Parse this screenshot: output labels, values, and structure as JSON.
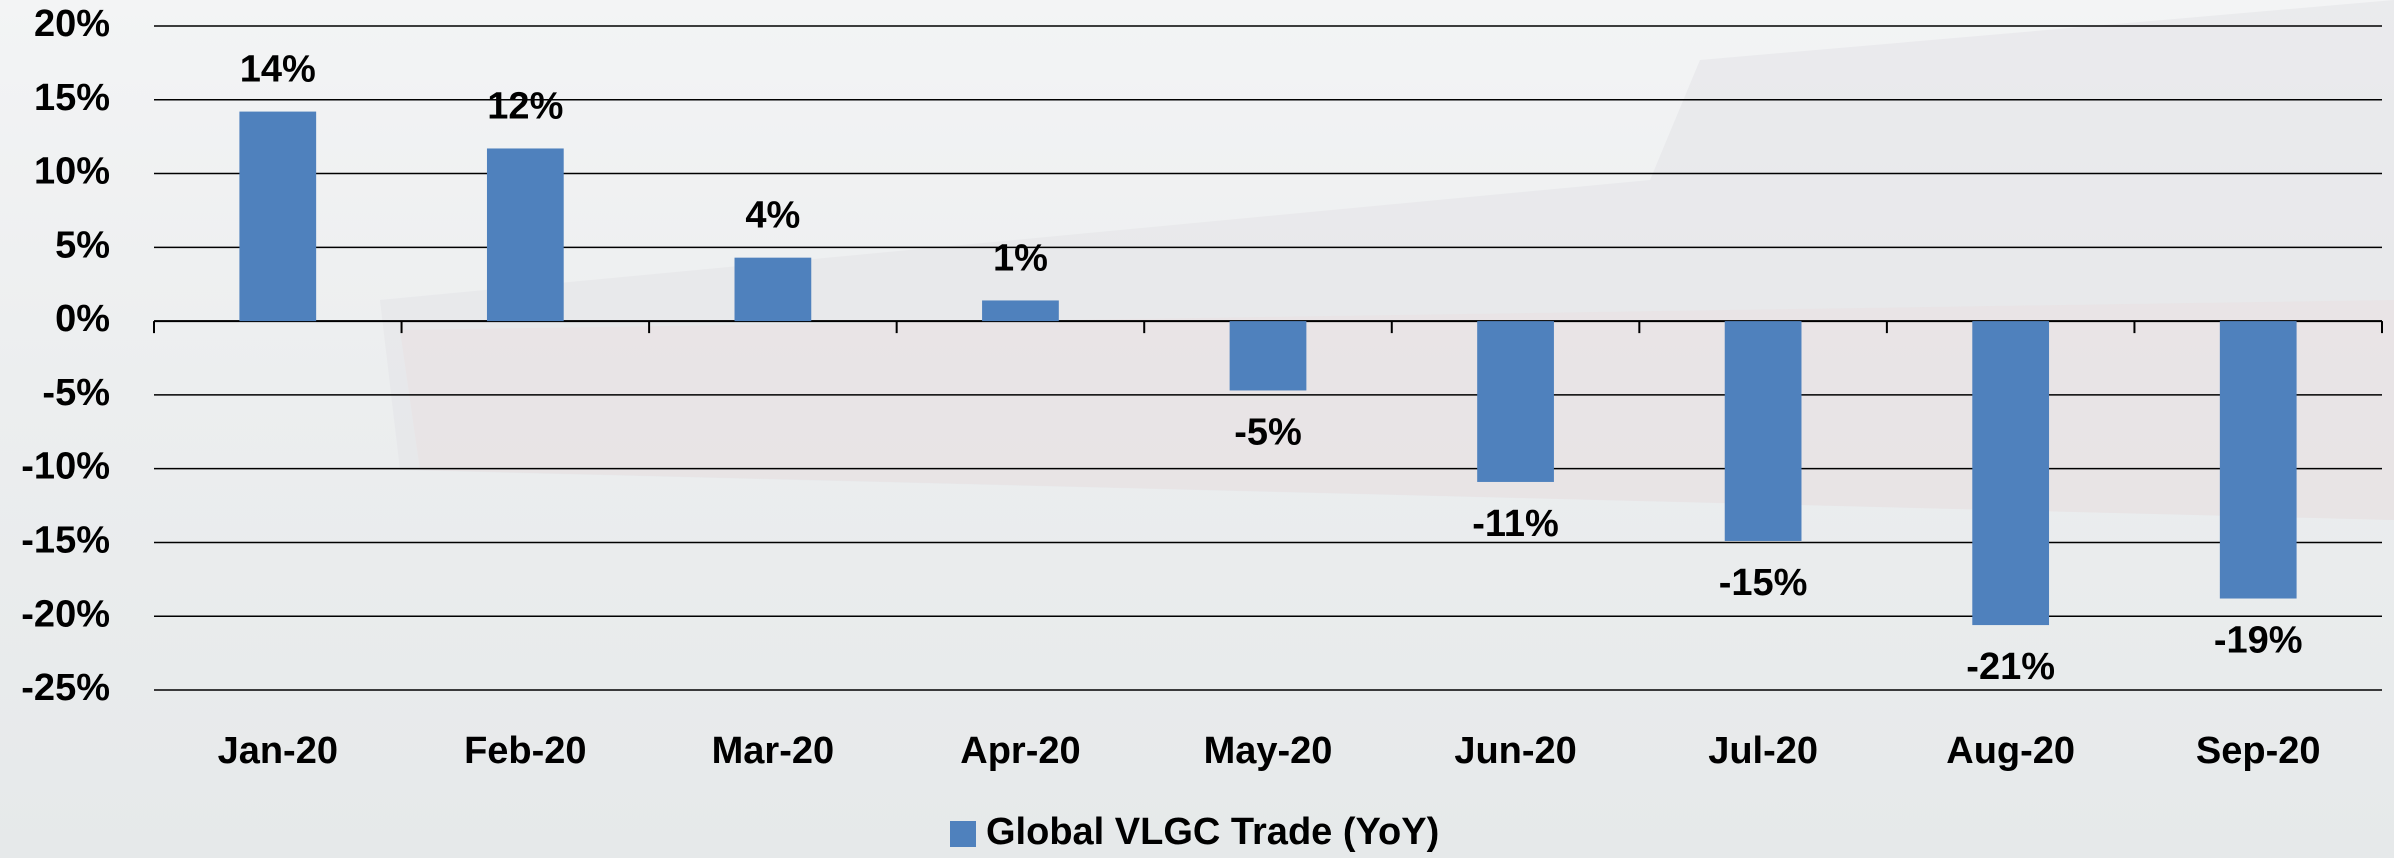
{
  "chart_data": {
    "type": "bar",
    "categories": [
      "Jan-20",
      "Feb-20",
      "Mar-20",
      "Apr-20",
      "May-20",
      "Jun-20",
      "Jul-20",
      "Aug-20",
      "Sep-20"
    ],
    "series": [
      {
        "name": "Global VLGC Trade (YoY)",
        "color": "#4f81bd",
        "values": [
          14.2,
          11.7,
          4.3,
          1.4,
          -4.7,
          -10.9,
          -14.9,
          -20.6,
          -18.8
        ],
        "value_labels": [
          "14%",
          "12%",
          "4%",
          "1%",
          "-5%",
          "-11%",
          "-15%",
          "-21%",
          "-19%"
        ]
      }
    ],
    "ylim": [
      -25,
      20
    ],
    "yticks": [
      {
        "value": -25,
        "label": "-25%"
      },
      {
        "value": -20,
        "label": "-20%"
      },
      {
        "value": -15,
        "label": "-15%"
      },
      {
        "value": -10,
        "label": "-10%"
      },
      {
        "value": -5,
        "label": "-5%"
      },
      {
        "value": 0,
        "label": "0%"
      },
      {
        "value": 5,
        "label": "5%"
      },
      {
        "value": 10,
        "label": "10%"
      },
      {
        "value": 15,
        "label": "15%"
      },
      {
        "value": 20,
        "label": "20%"
      }
    ],
    "grid": true,
    "legend": "bottom"
  }
}
